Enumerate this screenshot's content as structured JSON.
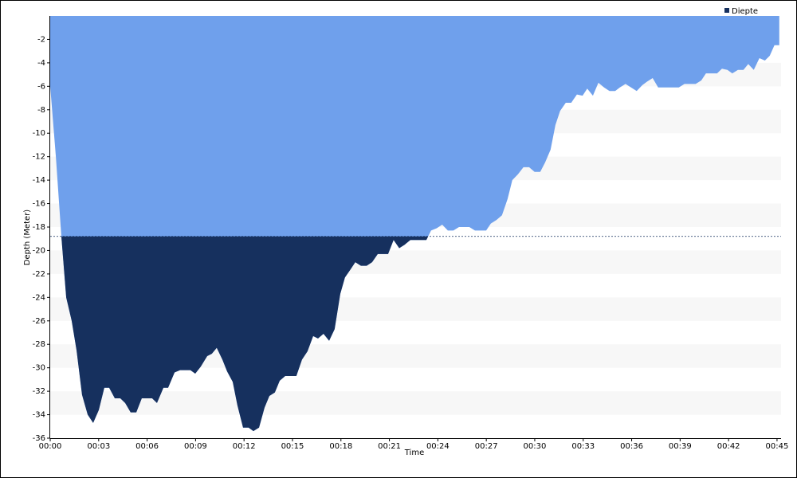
{
  "chart_data": {
    "type": "area",
    "y_label": "Depth (Meter)",
    "x_label": "Time",
    "xlim": [
      0,
      45.25
    ],
    "ylim": [
      -36,
      0
    ],
    "xticks": [
      {
        "value": 0,
        "label": "00:00"
      },
      {
        "value": 3,
        "label": "00:03"
      },
      {
        "value": 6,
        "label": "00:06"
      },
      {
        "value": 9,
        "label": "00:09"
      },
      {
        "value": 12,
        "label": "00:12"
      },
      {
        "value": 15,
        "label": "00:15"
      },
      {
        "value": 18,
        "label": "00:18"
      },
      {
        "value": 21,
        "label": "00:21"
      },
      {
        "value": 24,
        "label": "00:24"
      },
      {
        "value": 27,
        "label": "00:27"
      },
      {
        "value": 30,
        "label": "00:30"
      },
      {
        "value": 33,
        "label": "00:33"
      },
      {
        "value": 36,
        "label": "00:36"
      },
      {
        "value": 39,
        "label": "00:39"
      },
      {
        "value": 42,
        "label": "00:42"
      },
      {
        "value": 45,
        "label": "00:45"
      }
    ],
    "yticks": [
      -2,
      -4,
      -6,
      -8,
      -10,
      -12,
      -14,
      -16,
      -18,
      -20,
      -22,
      -24,
      -26,
      -28,
      -30,
      -32,
      -34,
      -36
    ],
    "threshold": -18.8,
    "threshold_color": "#16305e",
    "series": [
      {
        "name": "Diepte",
        "color": "#6fa0ec",
        "x": [
          0,
          0.35,
          0.69,
          0.99,
          1.33,
          1.63,
          1.97,
          2.32,
          2.66,
          3.01,
          3.35,
          3.65,
          4.0,
          4.34,
          4.64,
          4.98,
          5.33,
          5.67,
          6.31,
          6.61,
          7.01,
          7.3,
          7.7,
          8.04,
          8.68,
          8.98,
          9.32,
          9.72,
          10.01,
          10.31,
          10.66,
          10.95,
          11.3,
          11.59,
          11.94,
          12.28,
          12.58,
          12.93,
          13.27,
          13.57,
          13.91,
          14.21,
          14.55,
          15.24,
          15.59,
          15.93,
          16.28,
          16.58,
          16.92,
          17.27,
          17.61,
          17.96,
          18.25,
          18.6,
          18.89,
          19.24,
          19.59,
          19.93,
          20.28,
          20.92,
          21.26,
          21.61,
          21.95,
          22.3,
          23.29,
          23.58,
          23.93,
          24.27,
          24.62,
          24.96,
          25.31,
          25.95,
          26.3,
          26.99,
          27.28,
          27.63,
          27.97,
          28.32,
          28.61,
          28.96,
          29.3,
          29.65,
          29.99,
          30.34,
          30.64,
          30.98,
          31.28,
          31.57,
          31.92,
          32.26,
          32.61,
          32.96,
          33.25,
          33.6,
          33.94,
          34.29,
          34.63,
          34.98,
          35.27,
          35.62,
          35.96,
          36.31,
          36.66,
          36.95,
          37.3,
          37.64,
          38.92,
          39.27,
          39.96,
          40.31,
          40.6,
          41.29,
          41.59,
          41.93,
          42.23,
          42.58,
          42.92,
          43.22,
          43.56,
          43.91,
          44.25,
          44.55,
          44.84,
          45.14
        ],
        "values": [
          -6,
          -12,
          -18.8,
          -24,
          -26,
          -28.5,
          -32.3,
          -34,
          -34.7,
          -33.6,
          -31.7,
          -31.7,
          -32.6,
          -32.6,
          -33,
          -33.8,
          -33.8,
          -32.6,
          -32.6,
          -33,
          -31.7,
          -31.7,
          -30.4,
          -30.2,
          -30.2,
          -30.5,
          -29.9,
          -29,
          -28.8,
          -28.3,
          -29.3,
          -30.3,
          -31.2,
          -33.2,
          -35.1,
          -35.1,
          -35.4,
          -35.1,
          -33.4,
          -32.4,
          -32.1,
          -31.1,
          -30.7,
          -30.7,
          -29.3,
          -28.6,
          -27.3,
          -27.5,
          -27.1,
          -27.7,
          -26.7,
          -23.7,
          -22.3,
          -21.6,
          -21,
          -21.3,
          -21.3,
          -21,
          -20.3,
          -20.3,
          -19.1,
          -19.8,
          -19.5,
          -19.1,
          -19.1,
          -18.3,
          -18.1,
          -17.8,
          -18.3,
          -18.3,
          -18,
          -18,
          -18.3,
          -18.3,
          -17.7,
          -17.4,
          -17,
          -15.6,
          -14,
          -13.5,
          -12.9,
          -12.9,
          -13.3,
          -13.3,
          -12.5,
          -11.4,
          -9.3,
          -8.1,
          -7.4,
          -7.4,
          -6.7,
          -6.8,
          -6.2,
          -6.8,
          -5.7,
          -6.1,
          -6.4,
          -6.4,
          -6.1,
          -5.8,
          -6.1,
          -6.4,
          -5.9,
          -5.6,
          -5.3,
          -6.1,
          -6.1,
          -5.8,
          -5.8,
          -5.5,
          -4.9,
          -4.9,
          -4.5,
          -4.6,
          -4.9,
          -4.6,
          -4.6,
          -4.1,
          -4.6,
          -3.6,
          -3.8,
          -3.4,
          -2.5,
          -2.5
        ]
      }
    ]
  }
}
